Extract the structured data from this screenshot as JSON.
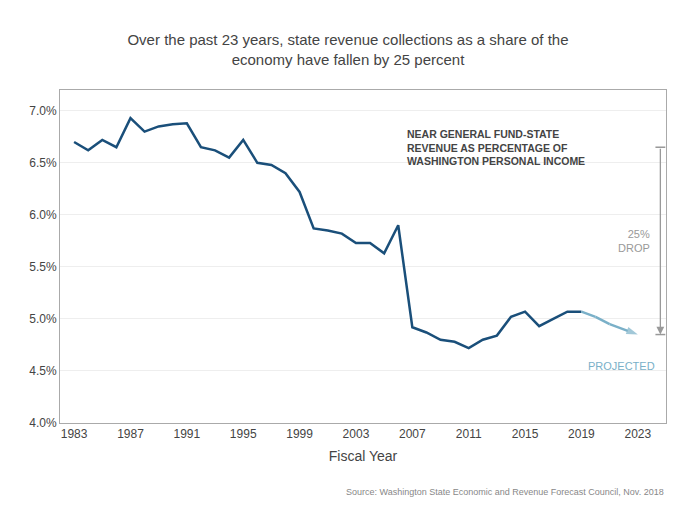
{
  "chart_data": {
    "type": "line",
    "title": "Over the past 23 years, state revenue collections as a share of the\neconomy have fallen by 25 percent",
    "xlabel": "Fiscal Year",
    "source": "Source: Washington State Economic and Revenue Forecast Council, Nov. 2018",
    "annotations": [
      {
        "text": "NEAR GENERAL FUND-STATE\nREVENUE AS PERCENTAGE OF\nWASHINGTON PERSONAL INCOME"
      },
      {
        "text": "PROJECTED",
        "series": 1
      }
    ],
    "drop_bracket": {
      "label": "25%\nDROP",
      "top": 6.65,
      "bottom": 4.85,
      "color": "#999999"
    },
    "series": [
      {
        "color": "#1a4f7a",
        "x": [
          1983,
          1984,
          1985,
          1986,
          1987,
          1988,
          1989,
          1990,
          1991,
          1992,
          1993,
          1994,
          1995,
          1996,
          1997,
          1998,
          1999,
          2000,
          2001,
          2002,
          2003,
          2004,
          2005,
          2006,
          2007,
          2008,
          2009,
          2010,
          2011,
          2012,
          2013,
          2014,
          2015,
          2016,
          2017,
          2018,
          2019
        ],
        "values": [
          6.7,
          6.62,
          6.72,
          6.65,
          6.93,
          6.8,
          6.85,
          6.87,
          6.88,
          6.65,
          6.62,
          6.55,
          6.72,
          6.5,
          6.48,
          6.4,
          6.22,
          5.87,
          5.85,
          5.82,
          5.73,
          5.73,
          5.63,
          5.9,
          4.92,
          4.87,
          4.8,
          4.78,
          4.72,
          4.8,
          4.84,
          5.02,
          5.07,
          4.93,
          5.0,
          5.07,
          5.07
        ]
      },
      {
        "color": "#7ab0c8",
        "marker": "arrow",
        "x": [
          2019,
          2020,
          2021,
          2022,
          2023
        ],
        "values": [
          5.07,
          5.02,
          4.95,
          4.9,
          4.85
        ]
      }
    ],
    "xlim": [
      1982,
      2025
    ],
    "xticks": [
      1983,
      1987,
      1991,
      1995,
      1999,
      2003,
      2007,
      2011,
      2015,
      2019,
      2023
    ],
    "ylim": [
      4.0,
      7.2
    ],
    "yticks": [
      {
        "value": 4.0,
        "label": "4.0%"
      },
      {
        "value": 4.5,
        "label": "4.5%"
      },
      {
        "value": 5.0,
        "label": "5.0%"
      },
      {
        "value": 5.5,
        "label": "5.5%"
      },
      {
        "value": 6.0,
        "label": "6.0%"
      },
      {
        "value": 6.5,
        "label": "6.5%"
      },
      {
        "value": 7.0,
        "label": "7.0%"
      }
    ],
    "grid": true
  }
}
